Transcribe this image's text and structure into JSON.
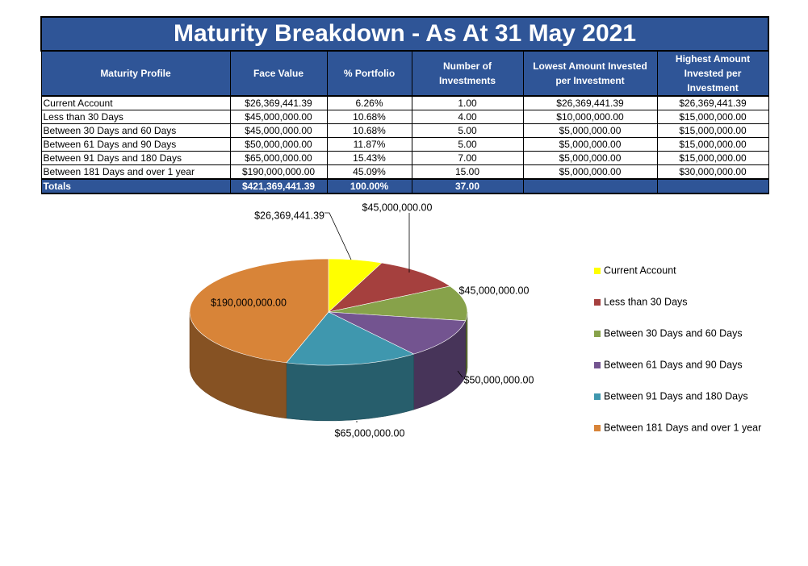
{
  "table": {
    "title": "Maturity Breakdown - As At 31 May 2021",
    "headers": [
      "Maturity Profile",
      "Face Value",
      "% Portfolio",
      "Number of Investments",
      "Lowest Amount Invested per Investment",
      "Highest Amount Invested per Investment"
    ],
    "rows": [
      [
        "Current Account",
        "$26,369,441.39",
        "6.26%",
        "1.00",
        "$26,369,441.39",
        "$26,369,441.39"
      ],
      [
        "Less than 30 Days",
        "$45,000,000.00",
        "10.68%",
        "4.00",
        "$10,000,000.00",
        "$15,000,000.00"
      ],
      [
        "Between 30 Days and 60 Days",
        "$45,000,000.00",
        "10.68%",
        "5.00",
        "$5,000,000.00",
        "$15,000,000.00"
      ],
      [
        "Between 61 Days and 90 Days",
        "$50,000,000.00",
        "11.87%",
        "5.00",
        "$5,000,000.00",
        "$15,000,000.00"
      ],
      [
        "Between 91 Days and 180 Days",
        "$65,000,000.00",
        "15.43%",
        "7.00",
        "$5,000,000.00",
        "$15,000,000.00"
      ],
      [
        "Between 181 Days and over 1 year",
        "$190,000,000.00",
        "45.09%",
        "15.00",
        "$5,000,000.00",
        "$30,000,000.00"
      ]
    ],
    "totals": [
      "Totals",
      "$421,369,441.39",
      "100.00%",
      "37.00",
      "",
      ""
    ]
  },
  "chart_data": {
    "type": "pie",
    "title": "",
    "categories": [
      "Current Account",
      "Less than 30 Days",
      "Between 30 Days and 60 Days",
      "Between 61 Days and 90 Days",
      "Between 91 Days and 180 Days",
      "Between 181 Days and over 1 year"
    ],
    "values": [
      26369441.39,
      45000000,
      45000000,
      50000000,
      65000000,
      190000000
    ],
    "data_labels": [
      "$26,369,441.39",
      "$45,000,000.00",
      "$45,000,000.00",
      "$50,000,000.00",
      "$65,000,000.00",
      "$190,000,000.00"
    ],
    "colors": [
      "#ffff00",
      "#a5403e",
      "#87a24a",
      "#735490",
      "#3f97ae",
      "#d88438"
    ],
    "legend_position": "right",
    "style": "3d"
  }
}
